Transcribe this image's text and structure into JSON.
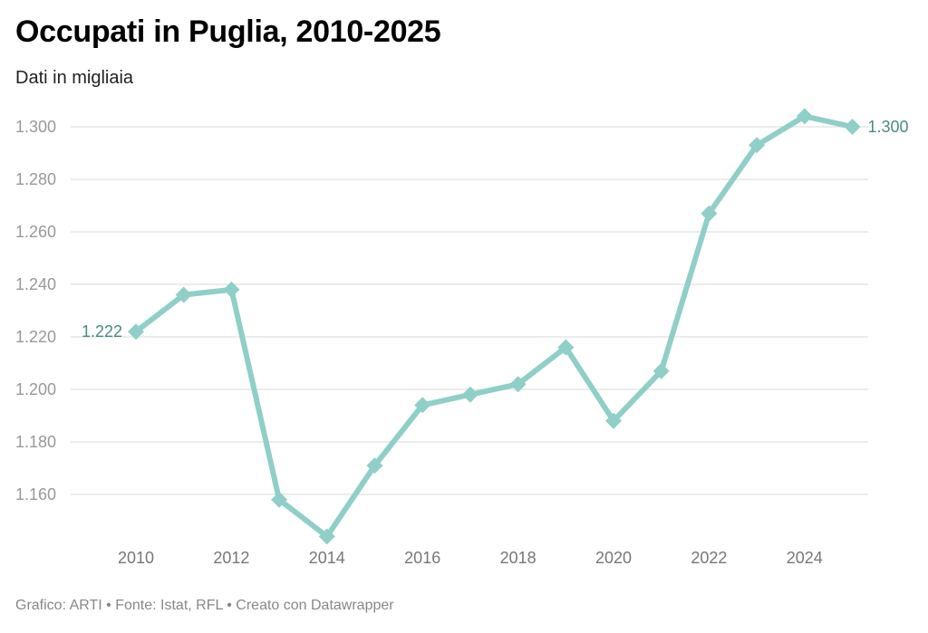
{
  "title": "Occupati in Puglia, 2010-2025",
  "subtitle": "Dati in migliaia",
  "footer": "Grafico: ARTI • Fonte: Istat, RFL • Creato con Datawrapper",
  "colors": {
    "line": "#8fcfc7",
    "label": "#4a8a84",
    "grid": "#e6e6e6",
    "ytick": "#999999",
    "xtick": "#777777"
  },
  "chart_data": {
    "type": "line",
    "title": "Occupati in Puglia, 2010-2025",
    "subtitle": "Dati in migliaia",
    "xlabel": "",
    "ylabel": "",
    "x": [
      2010,
      2011,
      2012,
      2013,
      2014,
      2015,
      2016,
      2017,
      2018,
      2019,
      2020,
      2021,
      2022,
      2023,
      2024,
      2025
    ],
    "series": [
      {
        "name": "Occupati",
        "values": [
          1222,
          1236,
          1238,
          1158,
          1144,
          1171,
          1194,
          1198,
          1202,
          1216,
          1188,
          1207,
          1267,
          1293,
          1304,
          1300
        ]
      }
    ],
    "xlim": [
      2010,
      2025
    ],
    "ylim": [
      1140,
      1305
    ],
    "yticks": [
      1160,
      1180,
      1200,
      1220,
      1240,
      1260,
      1280,
      1300
    ],
    "ytick_labels": [
      "1.160",
      "1.180",
      "1.200",
      "1.220",
      "1.240",
      "1.260",
      "1.280",
      "1.300"
    ],
    "xticks": [
      2010,
      2012,
      2014,
      2016,
      2018,
      2020,
      2022,
      2024
    ],
    "xtick_labels": [
      "2010",
      "2012",
      "2014",
      "2016",
      "2018",
      "2020",
      "2022",
      "2024"
    ],
    "annotations": [
      {
        "x": 2010,
        "text": "1.222",
        "side": "left"
      },
      {
        "x": 2025,
        "text": "1.300",
        "side": "right"
      }
    ],
    "grid": true,
    "marker": "diamond"
  }
}
